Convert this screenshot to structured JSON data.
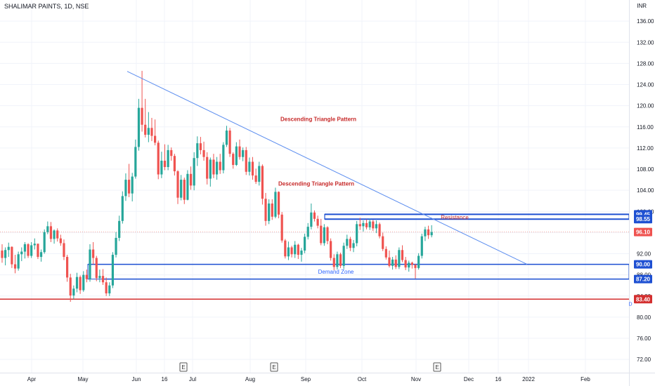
{
  "header": {
    "title": "SHALIMAR PAINTS, 1D, NSE",
    "currency": "INR"
  },
  "colors": {
    "up": "#26a69a",
    "down": "#ef5350",
    "trendline": "#5b8def",
    "zone": "#1e50d2",
    "support": "#d32f2f",
    "annotation": "#c62828",
    "zone_text": "#2962ff",
    "last_price_line": "#f28b82"
  },
  "chart_data": {
    "type": "candlestick",
    "ylim": [
      69.5,
      140
    ],
    "y_ticks": [
      72.0,
      76.0,
      80.0,
      84.0,
      88.0,
      92.0,
      96.0,
      100.0,
      104.0,
      108.0,
      112.0,
      116.0,
      120.0,
      124.0,
      128.0,
      132.0,
      136.0
    ],
    "x_ticks": [
      "Apr",
      "May",
      "Jun",
      "16",
      "Jul",
      "Aug",
      "Sep",
      "Oct",
      "Nov",
      "Dec",
      "16",
      "2022",
      "Feb"
    ],
    "grid": true,
    "price_labels": [
      {
        "text": "99.45",
        "value": 99.45,
        "color": "#1e50d2"
      },
      {
        "text": "98.55",
        "value": 98.55,
        "color": "#1e50d2"
      },
      {
        "text": "96.10",
        "value": 96.1,
        "color": "#ef5350"
      },
      {
        "text": "90.00",
        "value": 90.0,
        "color": "#1e50d2"
      },
      {
        "text": "87.20",
        "value": 87.2,
        "color": "#1e50d2"
      },
      {
        "text": "83.40",
        "value": 83.4,
        "color": "#d32f2f"
      }
    ],
    "annotations": [
      {
        "text": "Descending Triangle Pattern",
        "value": 117.5,
        "kind": "pattern"
      },
      {
        "text": "Descending Triangle Pattern",
        "value": 105.3,
        "kind": "pattern"
      },
      {
        "text": "Resistance",
        "value": 98.9,
        "kind": "resistance"
      },
      {
        "text": "Demand Zone",
        "value": 88.6,
        "kind": "demand"
      }
    ],
    "events": [
      {
        "text": "E"
      },
      {
        "text": "E"
      },
      {
        "text": "E"
      }
    ],
    "extra_label": "D",
    "trendline": {
      "from": 126.5,
      "to": 90.0
    },
    "resistance_zone": [
      98.55,
      99.45
    ],
    "demand_zone": [
      87.2,
      90.0
    ],
    "support_line": 83.4,
    "last_price": 96.1,
    "candles": [
      [
        92.6,
        93.8,
        90.3,
        91.2
      ],
      [
        91.2,
        93.2,
        89.8,
        92.7
      ],
      [
        92.7,
        94.1,
        91.4,
        93.3
      ],
      [
        93.3,
        93.4,
        89.3,
        90.0
      ],
      [
        90.0,
        91.8,
        88.3,
        89.2
      ],
      [
        89.2,
        92.4,
        88.8,
        91.9
      ],
      [
        91.9,
        93.2,
        90.6,
        92.4
      ],
      [
        92.4,
        94.2,
        91.1,
        93.8
      ],
      [
        93.8,
        94.0,
        91.2,
        91.6
      ],
      [
        91.6,
        94.2,
        91.2,
        93.6
      ],
      [
        93.6,
        94.9,
        92.8,
        93.9
      ],
      [
        93.9,
        93.9,
        91.0,
        91.4
      ],
      [
        91.4,
        92.8,
        90.5,
        92.3
      ],
      [
        92.3,
        96.6,
        92.0,
        96.1
      ],
      [
        96.1,
        98.1,
        95.7,
        97.2
      ],
      [
        97.2,
        98.0,
        94.2,
        94.8
      ],
      [
        94.8,
        96.6,
        93.9,
        96.4
      ],
      [
        96.4,
        96.8,
        94.3,
        94.9
      ],
      [
        94.9,
        95.6,
        93.5,
        94.0
      ],
      [
        94.0,
        94.7,
        90.8,
        91.4
      ],
      [
        91.4,
        91.8,
        86.7,
        87.5
      ],
      [
        87.5,
        88.2,
        82.9,
        84.1
      ],
      [
        84.1,
        86.0,
        83.4,
        85.4
      ],
      [
        85.4,
        88.4,
        84.7,
        87.6
      ],
      [
        87.6,
        87.9,
        84.4,
        85.1
      ],
      [
        85.1,
        88.7,
        84.8,
        88.0
      ],
      [
        88.0,
        89.0,
        86.6,
        87.2
      ],
      [
        87.2,
        93.8,
        86.7,
        92.8
      ],
      [
        92.8,
        94.2,
        90.0,
        91.2
      ],
      [
        91.2,
        91.6,
        86.8,
        87.4
      ],
      [
        87.4,
        89.0,
        86.6,
        87.8
      ],
      [
        87.8,
        89.1,
        86.1,
        86.6
      ],
      [
        86.6,
        87.5,
        84.0,
        84.5
      ],
      [
        84.5,
        86.6,
        84.0,
        86.0
      ],
      [
        86.0,
        92.3,
        85.5,
        91.8
      ],
      [
        91.8,
        96.1,
        91.3,
        95.0
      ],
      [
        95.0,
        99.2,
        94.4,
        98.2
      ],
      [
        98.2,
        103.8,
        97.7,
        102.9
      ],
      [
        102.9,
        107.2,
        102.0,
        106.0
      ],
      [
        106.0,
        109.0,
        102.7,
        103.4
      ],
      [
        103.4,
        107.3,
        101.9,
        106.6
      ],
      [
        106.6,
        113.6,
        106.2,
        112.2
      ],
      [
        112.2,
        121.3,
        111.5,
        119.6
      ],
      [
        119.6,
        126.6,
        115.1,
        116.4
      ],
      [
        116.4,
        121.3,
        114.0,
        114.5
      ],
      [
        114.5,
        118.8,
        113.1,
        115.8
      ],
      [
        115.8,
        117.7,
        113.3,
        114.3
      ],
      [
        114.3,
        117.4,
        112.5,
        113.0
      ],
      [
        113.0,
        113.4,
        106.1,
        107.0
      ],
      [
        107.0,
        111.3,
        106.3,
        109.6
      ],
      [
        109.6,
        112.7,
        107.8,
        108.4
      ],
      [
        108.4,
        112.6,
        107.8,
        111.6
      ],
      [
        111.6,
        112.1,
        109.6,
        110.5
      ],
      [
        110.5,
        110.9,
        106.8,
        107.6
      ],
      [
        107.6,
        107.8,
        101.4,
        102.6
      ],
      [
        102.6,
        106.9,
        102.1,
        106.0
      ],
      [
        106.0,
        106.4,
        101.4,
        102.2
      ],
      [
        102.2,
        107.8,
        102.1,
        107.1
      ],
      [
        107.1,
        108.5,
        104.1,
        104.9
      ],
      [
        104.9,
        111.2,
        104.0,
        110.1
      ],
      [
        110.1,
        114.2,
        108.6,
        112.9
      ],
      [
        112.9,
        114.1,
        110.8,
        111.6
      ],
      [
        111.6,
        113.2,
        109.6,
        110.3
      ],
      [
        110.3,
        111.2,
        105.1,
        106.2
      ],
      [
        106.2,
        110.2,
        104.7,
        109.8
      ],
      [
        109.8,
        110.9,
        106.3,
        107.0
      ],
      [
        107.0,
        110.3,
        106.0,
        109.4
      ],
      [
        109.4,
        110.9,
        107.1,
        107.8
      ],
      [
        107.8,
        113.1,
        107.2,
        112.6
      ],
      [
        112.6,
        116.2,
        112.2,
        115.3
      ],
      [
        115.3,
        115.8,
        110.3,
        110.9
      ],
      [
        110.9,
        111.2,
        108.1,
        108.8
      ],
      [
        108.8,
        113.1,
        108.6,
        112.3
      ],
      [
        112.3,
        113.6,
        109.8,
        110.3
      ],
      [
        110.3,
        112.1,
        109.5,
        111.6
      ],
      [
        111.6,
        112.2,
        106.9,
        107.5
      ],
      [
        107.5,
        110.2,
        106.8,
        109.4
      ],
      [
        109.4,
        110.3,
        106.0,
        106.8
      ],
      [
        106.8,
        108.1,
        105.2,
        105.6
      ],
      [
        105.6,
        109.4,
        104.9,
        108.6
      ],
      [
        108.6,
        108.9,
        101.3,
        102.4
      ],
      [
        102.4,
        103.5,
        97.3,
        98.2
      ],
      [
        98.2,
        102.3,
        97.6,
        101.5
      ],
      [
        101.5,
        102.3,
        98.4,
        99.0
      ],
      [
        99.0,
        104.5,
        98.7,
        103.7
      ],
      [
        103.7,
        103.8,
        98.7,
        99.4
      ],
      [
        99.4,
        99.9,
        94.1,
        94.5
      ],
      [
        94.5,
        94.8,
        91.1,
        91.5
      ],
      [
        91.5,
        94.3,
        90.8,
        93.2
      ],
      [
        93.2,
        93.5,
        91.3,
        91.9
      ],
      [
        91.9,
        94.4,
        91.2,
        93.7
      ],
      [
        93.7,
        93.9,
        91.0,
        91.8
      ],
      [
        91.8,
        93.1,
        90.5,
        92.6
      ],
      [
        92.6,
        95.8,
        92.1,
        95.2
      ],
      [
        95.2,
        97.8,
        94.7,
        97.1
      ],
      [
        97.1,
        101.5,
        96.6,
        99.8
      ],
      [
        99.8,
        100.2,
        98.1,
        98.6
      ],
      [
        98.6,
        99.2,
        96.8,
        97.3
      ],
      [
        97.3,
        98.6,
        93.6,
        94.0
      ],
      [
        94.0,
        97.6,
        93.5,
        97.0
      ],
      [
        97.0,
        97.2,
        93.8,
        94.4
      ],
      [
        94.4,
        94.9,
        90.7,
        91.2
      ],
      [
        91.2,
        91.9,
        88.9,
        89.5
      ],
      [
        89.5,
        92.4,
        89.0,
        91.9
      ],
      [
        91.9,
        92.2,
        89.3,
        89.7
      ],
      [
        89.7,
        94.1,
        89.1,
        93.5
      ],
      [
        93.5,
        95.6,
        92.9,
        94.8
      ],
      [
        94.8,
        95.2,
        92.5,
        93.1
      ],
      [
        93.1,
        94.6,
        92.3,
        94.0
      ],
      [
        94.0,
        98.2,
        93.4,
        97.6
      ],
      [
        97.6,
        98.8,
        96.5,
        97.2
      ],
      [
        97.2,
        98.3,
        96.2,
        97.8
      ],
      [
        97.8,
        98.5,
        96.6,
        97.0
      ],
      [
        97.0,
        98.6,
        96.5,
        98.1
      ],
      [
        98.1,
        98.4,
        96.3,
        96.8
      ],
      [
        96.8,
        98.3,
        95.9,
        97.6
      ],
      [
        97.6,
        97.9,
        94.9,
        95.3
      ],
      [
        95.3,
        96.0,
        92.5,
        92.9
      ],
      [
        92.9,
        93.4,
        90.9,
        91.3
      ],
      [
        91.3,
        92.6,
        89.4,
        89.7
      ],
      [
        89.7,
        91.4,
        89.0,
        90.9
      ],
      [
        90.9,
        91.7,
        89.1,
        89.5
      ],
      [
        89.5,
        93.2,
        89.1,
        92.7
      ],
      [
        92.7,
        93.6,
        90.4,
        90.8
      ],
      [
        90.8,
        91.4,
        88.9,
        89.4
      ],
      [
        89.4,
        90.7,
        88.6,
        90.3
      ],
      [
        90.3,
        90.5,
        89.2,
        89.9
      ],
      [
        89.9,
        90.1,
        87.3,
        89.3
      ],
      [
        89.3,
        92.1,
        89.0,
        91.6
      ],
      [
        91.6,
        95.8,
        91.1,
        95.3
      ],
      [
        95.3,
        97.1,
        94.4,
        96.6
      ],
      [
        96.6,
        97.3,
        94.8,
        95.5
      ],
      [
        95.5,
        97.4,
        95.1,
        96.1
      ]
    ]
  }
}
